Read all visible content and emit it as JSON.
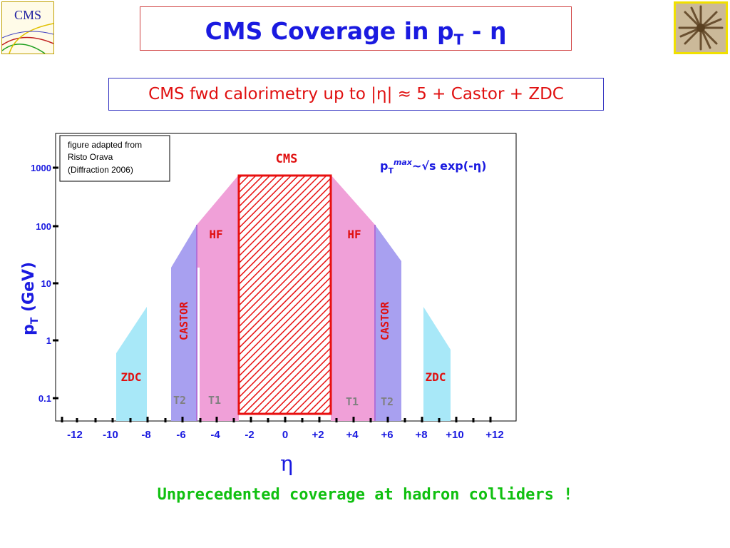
{
  "header": {
    "title_main": "CMS Coverage in p",
    "title_sub": "T",
    "title_tail": " - η",
    "subtitle": "CMS fwd calorimetry up to |η| ≈ 5 + Castor + ZDC"
  },
  "logos": {
    "left_text": "CMS",
    "right_name": "star-photo"
  },
  "note": {
    "line1": "figure adapted from",
    "line2": "Risto Orava",
    "line3": "(Diffraction 2006)"
  },
  "formula": {
    "p": "p",
    "sub": "T",
    "sup": "max",
    "rest": "~√s exp(-η)"
  },
  "chart_data": {
    "type": "area",
    "xlabel": "η",
    "ylabel_main": "p",
    "ylabel_sub": "T",
    "ylabel_tail": " (GeV)",
    "y_scale": "log",
    "x_ticks": [
      "-12",
      "-10",
      "-8",
      "-6",
      "-4",
      "-2",
      "0",
      "+2",
      "+4",
      "+6",
      "+8",
      "+10",
      "+12"
    ],
    "y_ticks": [
      "0.1",
      "1",
      "10",
      "100",
      "1000"
    ],
    "regions": [
      {
        "name": "CMS",
        "eta_range": [
          -2.7,
          2.7
        ],
        "label": "CMS",
        "color": "#e81010"
      },
      {
        "name": "HF",
        "side": "left",
        "label": "HF",
        "color": "#f0a0d8"
      },
      {
        "name": "HF",
        "side": "right",
        "label": "HF",
        "color": "#f0a0d8"
      },
      {
        "name": "CASTOR",
        "side": "left",
        "label": "CASTOR",
        "color": "#a8a0f0"
      },
      {
        "name": "CASTOR",
        "side": "right",
        "label": "CASTOR",
        "color": "#a8a0f0"
      },
      {
        "name": "ZDC",
        "side": "left",
        "label": "ZDC",
        "color": "#a8e8f8"
      },
      {
        "name": "ZDC",
        "side": "right",
        "label": "ZDC",
        "color": "#a8e8f8"
      }
    ],
    "tracker_labels": {
      "t1_left": "T1",
      "t2_left": "T2",
      "t1_right": "T1",
      "t2_right": "T2"
    },
    "colors": {
      "cms": "#e81010",
      "hf": "#f0a0d8",
      "castor": "#a8a0f0",
      "zdc": "#a8e8f8",
      "axis_text": "#1a1ae0",
      "label_red": "#e01010",
      "tracker_text": "#808080"
    }
  },
  "footer": {
    "text": "Unprecedented coverage at hadron colliders !"
  }
}
